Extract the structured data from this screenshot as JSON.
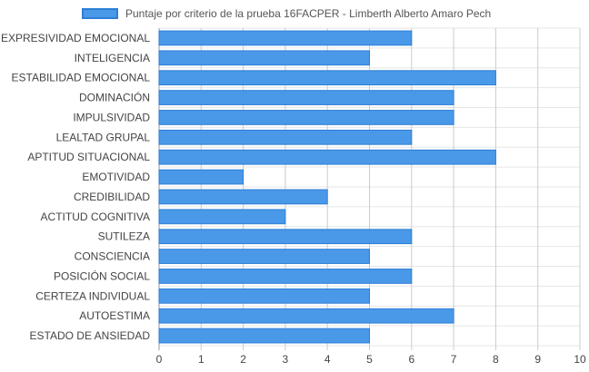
{
  "chart_data": {
    "type": "bar",
    "orientation": "horizontal",
    "categories": [
      "EXPRESIVIDAD EMOCIONAL",
      "INTELIGENCIA",
      "ESTABILIDAD EMOCIONAL",
      "DOMINACIÓN",
      "IMPULSIVIDAD",
      "LEALTAD GRUPAL",
      "APTITUD SITUACIONAL",
      "EMOTIVIDAD",
      "CREDIBILIDAD",
      "ACTITUD COGNITIVA",
      "SUTILEZA",
      "CONSCIENCIA",
      "POSICIÓN SOCIAL",
      "CERTEZA INDIVIDUAL",
      "AUTOESTIMA",
      "ESTADO DE ANSIEDAD"
    ],
    "series": [
      {
        "name": "Puntaje por criterio de la prueba 16FACPER - Limberth Alberto Amaro Pech",
        "values": [
          6,
          5,
          8,
          7,
          7,
          6,
          8,
          2,
          4,
          3,
          6,
          5,
          6,
          5,
          7,
          5
        ]
      }
    ],
    "xlim": [
      0,
      10
    ],
    "xticks": [
      "0",
      "1",
      "2",
      "3",
      "4",
      "5",
      "6",
      "7",
      "8",
      "9",
      "10"
    ],
    "grid": true,
    "legend_position": "top",
    "colors": {
      "bar_fill": "#4a98e8",
      "bar_stroke": "#2d7fd6",
      "grid": "#cccccc",
      "text": "#444444"
    }
  }
}
